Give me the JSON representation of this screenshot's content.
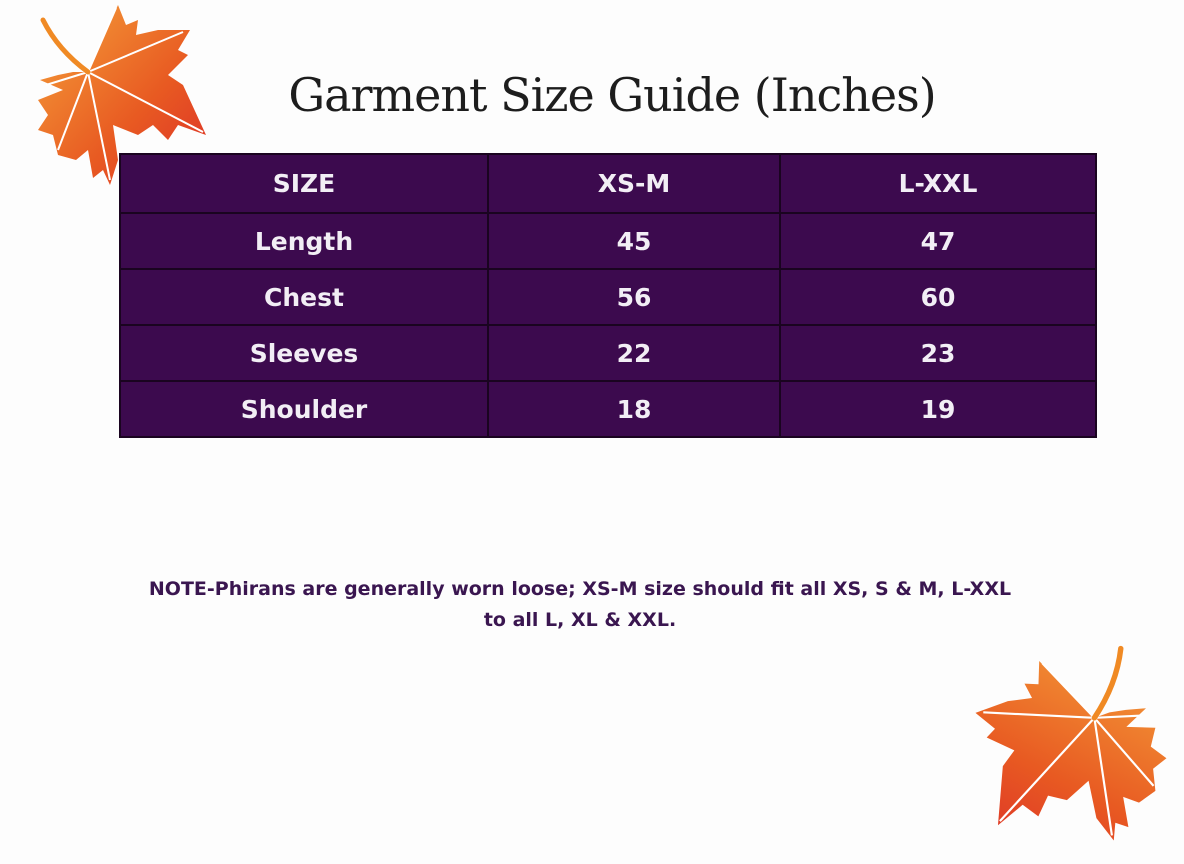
{
  "title": "Garment Size Guide (Inches)",
  "table": {
    "headers": [
      "SIZE",
      "XS-M",
      "L-XXL"
    ],
    "rows": [
      [
        "Length",
        "45",
        "47"
      ],
      [
        "Chest",
        "56",
        "60"
      ],
      [
        "Sleeves",
        "22",
        "23"
      ],
      [
        "Shoulder",
        "18",
        "19"
      ]
    ]
  },
  "note": {
    "line1": "NOTE-Phirans are generally worn loose; XS-M size should fit all XS, S & M, L-XXL",
    "line2": "to all L, XL & XXL."
  },
  "colors": {
    "table_bg": "#3c0a4e",
    "note_text": "#3a1650",
    "leaf_orange": "#f08a24",
    "leaf_red": "#e0342a"
  },
  "decorations": [
    "maple-leaf-icon",
    "maple-leaf-icon"
  ]
}
